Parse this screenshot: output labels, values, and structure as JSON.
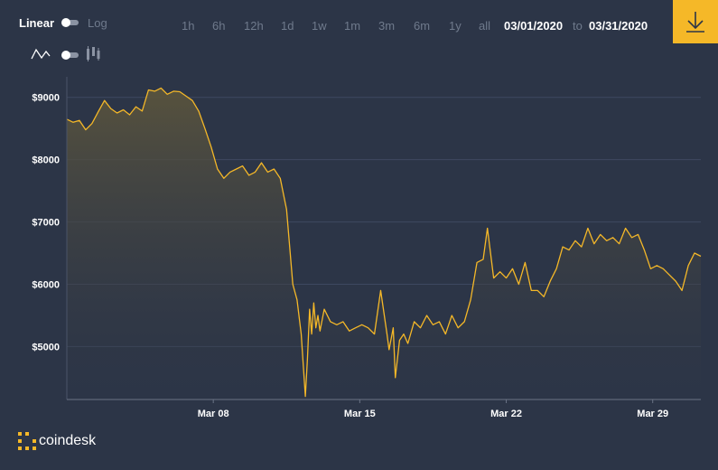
{
  "controls": {
    "scale_linear": "Linear",
    "scale_log": "Log",
    "ranges": [
      "1h",
      "6h",
      "12h",
      "1d",
      "1w",
      "1m",
      "3m",
      "6m",
      "1y",
      "all"
    ],
    "date_from": "03/01/2020",
    "date_to": "03/31/2020",
    "to_label": "to"
  },
  "brand": {
    "name": "coindesk"
  },
  "colors": {
    "background": "#2c3547",
    "line": "#f5b828",
    "accent": "#f5b828"
  },
  "icons": [
    "line-chart-icon",
    "candlestick-icon",
    "download-icon",
    "coindesk-logo-icon"
  ],
  "chart_data": {
    "type": "area",
    "title": "",
    "xlabel": "",
    "ylabel": "",
    "x_tick_labels": [
      "Mar 08",
      "Mar 15",
      "Mar 22",
      "Mar 29"
    ],
    "x_tick_days": [
      8,
      15,
      22,
      29
    ],
    "y_ticks": [
      5000,
      6000,
      7000,
      8000,
      9000
    ],
    "y_tick_labels": [
      "$5000",
      "$6000",
      "$7000",
      "$8000",
      "$9000"
    ],
    "xlim": [
      1,
      31.3
    ],
    "ylim": [
      4150,
      9330
    ],
    "grid": "horizontal",
    "series": [
      {
        "x": [
          1,
          1.3,
          1.6,
          1.9,
          2.2,
          2.5,
          2.8,
          3.1,
          3.4,
          3.7,
          4.0,
          4.3,
          4.6,
          4.9,
          5.2,
          5.5,
          5.8,
          6.1,
          6.4,
          6.7,
          7.0,
          7.3,
          7.6,
          7.9,
          8.2,
          8.5,
          8.8,
          9.1,
          9.4,
          9.7,
          10.0,
          10.3,
          10.6,
          10.9,
          11.2,
          11.5,
          11.8,
          12.0,
          12.2,
          12.4,
          12.5,
          12.6,
          12.7,
          12.8,
          12.9,
          13.0,
          13.1,
          13.3,
          13.6,
          13.9,
          14.2,
          14.5,
          14.8,
          15.1,
          15.4,
          15.7,
          16.0,
          16.3,
          16.4,
          16.6,
          16.7,
          16.9,
          17.1,
          17.3,
          17.6,
          17.9,
          18.2,
          18.5,
          18.8,
          19.1,
          19.4,
          19.7,
          20.0,
          20.3,
          20.6,
          20.9,
          21.1,
          21.4,
          21.7,
          22.0,
          22.3,
          22.6,
          22.9,
          23.2,
          23.5,
          23.8,
          24.1,
          24.4,
          24.7,
          25.0,
          25.3,
          25.6,
          25.9,
          26.2,
          26.5,
          26.8,
          27.1,
          27.4,
          27.7,
          28.0,
          28.3,
          28.6,
          28.9,
          29.2,
          29.5,
          29.8,
          30.1,
          30.4,
          30.7,
          31.0,
          31.3
        ],
        "values": [
          8650,
          8600,
          8630,
          8480,
          8580,
          8770,
          8950,
          8820,
          8750,
          8800,
          8720,
          8850,
          8780,
          9120,
          9100,
          9150,
          9050,
          9100,
          9090,
          9020,
          8950,
          8780,
          8500,
          8200,
          7850,
          7700,
          7800,
          7850,
          7900,
          7750,
          7800,
          7950,
          7800,
          7850,
          7700,
          7200,
          6000,
          5750,
          5200,
          4200,
          4800,
          5600,
          5200,
          5700,
          5300,
          5500,
          5250,
          5600,
          5400,
          5350,
          5400,
          5250,
          5300,
          5350,
          5300,
          5200,
          5900,
          5200,
          4950,
          5300,
          4500,
          5100,
          5200,
          5050,
          5400,
          5300,
          5500,
          5350,
          5400,
          5200,
          5500,
          5300,
          5400,
          5750,
          6350,
          6400,
          6900,
          6100,
          6200,
          6100,
          6250,
          6000,
          6350,
          5900,
          5900,
          5800,
          6050,
          6250,
          6600,
          6550,
          6700,
          6600,
          6900,
          6650,
          6800,
          6700,
          6750,
          6650,
          6900,
          6750,
          6800,
          6550,
          6250,
          6300,
          6250,
          6150,
          6050,
          5900,
          6300,
          6500,
          6450
        ]
      }
    ]
  }
}
